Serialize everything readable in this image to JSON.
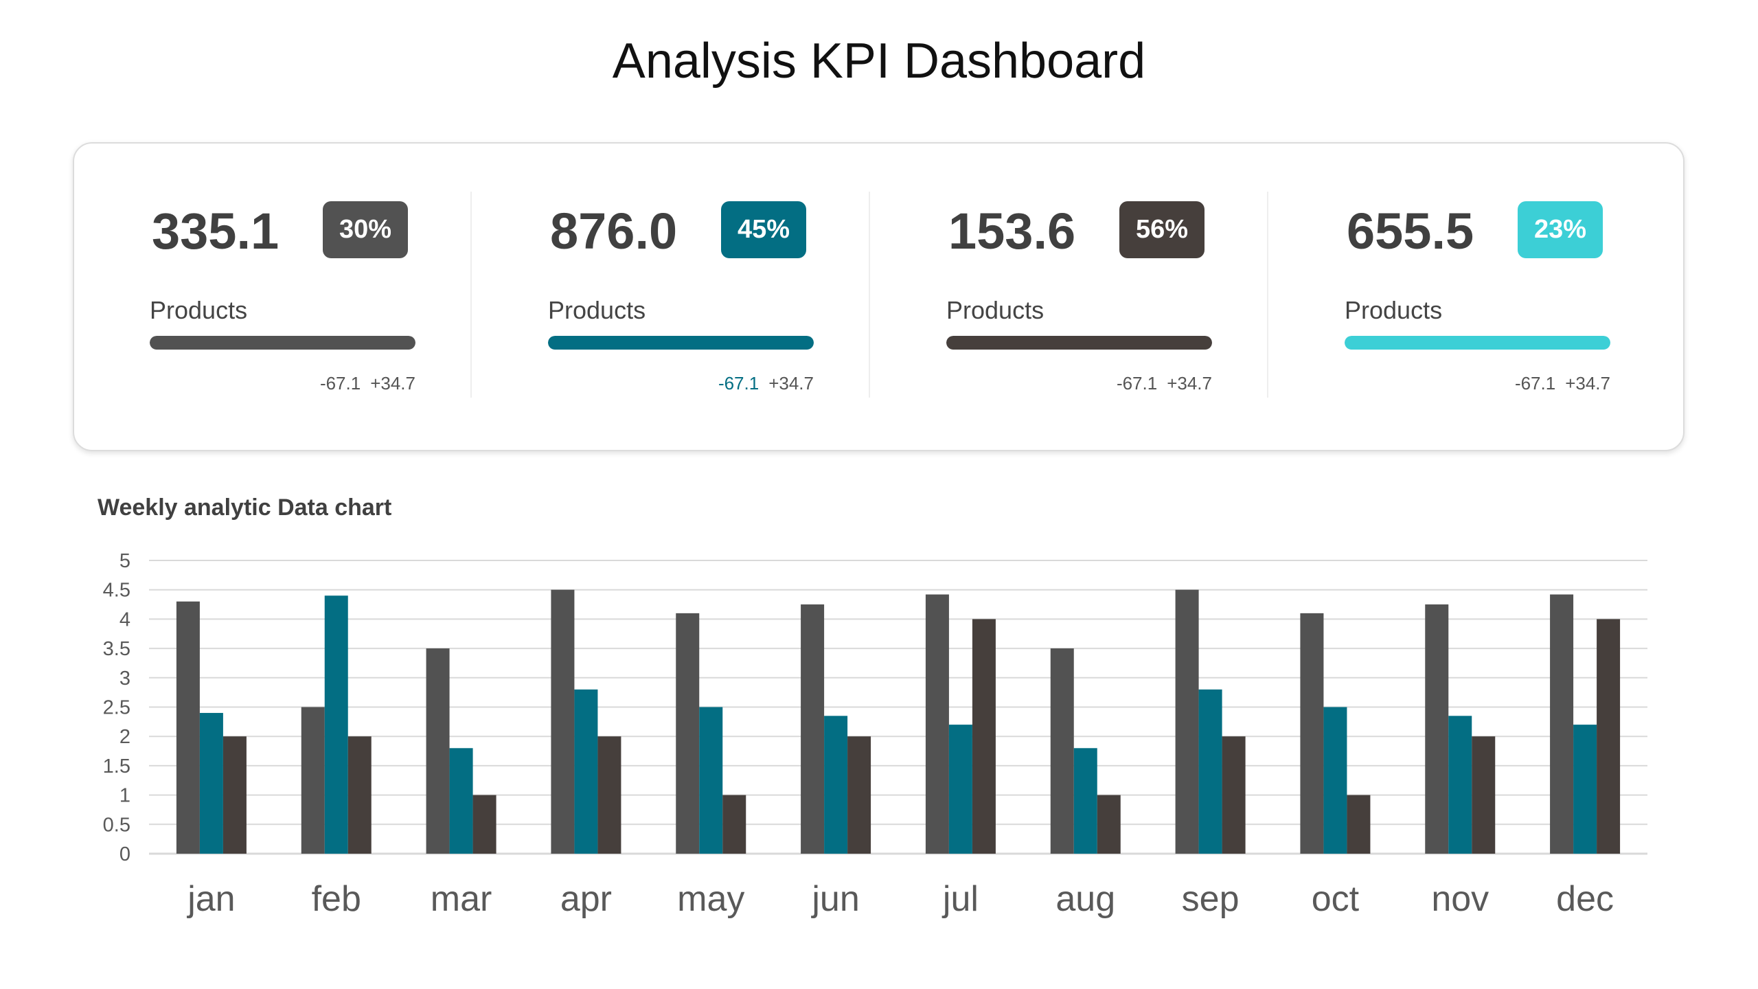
{
  "title": "Analysis KPI Dashboard",
  "kpis": [
    {
      "value": "335.1",
      "badge": "30%",
      "label": "Products",
      "fill": 1,
      "delta_neg": "-67.1",
      "delta_pos": "+34.7",
      "color": "#525252",
      "neg_color": "#555555"
    },
    {
      "value": "876.0",
      "badge": "45%",
      "label": "Products",
      "fill": 1,
      "delta_neg": "-67.1",
      "delta_pos": "+34.7",
      "color": "#036e83",
      "neg_color": "#036e83"
    },
    {
      "value": "153.6",
      "badge": "56%",
      "label": "Products",
      "fill": 1,
      "delta_neg": "-67.1",
      "delta_pos": "+34.7",
      "color": "#463f3c",
      "neg_color": "#555555"
    },
    {
      "value": "655.5",
      "badge": "23%",
      "label": "Products",
      "fill": 1,
      "delta_neg": "-67.1",
      "delta_pos": "+34.7",
      "color": "#3ccfd6",
      "neg_color": "#555555"
    }
  ],
  "chart_data": {
    "type": "bar",
    "title": "Weekly analytic Data chart",
    "categories": [
      "jan",
      "feb",
      "mar",
      "apr",
      "may",
      "jun",
      "jul",
      "aug",
      "sep",
      "oct",
      "nov",
      "dec"
    ],
    "series": [
      {
        "values": [
          4.3,
          2.5,
          3.5,
          4.5,
          4.1,
          4.25,
          4.42,
          3.5,
          4.5,
          4.1,
          4.25,
          4.42
        ],
        "color": "#525252"
      },
      {
        "values": [
          2.4,
          4.4,
          1.8,
          2.8,
          2.5,
          2.35,
          2.2,
          1.8,
          2.8,
          2.5,
          2.35,
          2.2
        ],
        "color": "#036e83"
      },
      {
        "values": [
          2,
          2,
          1,
          2,
          1,
          2,
          4,
          1,
          2,
          1,
          2,
          4
        ],
        "color": "#463f3c"
      }
    ],
    "ylim": [
      0,
      5
    ],
    "yticks": [
      "0",
      "0.5",
      "1",
      "1.5",
      "2",
      "2.5",
      "3",
      "3.5",
      "4",
      "4.5",
      "5"
    ],
    "grid": true,
    "legend": "none"
  }
}
